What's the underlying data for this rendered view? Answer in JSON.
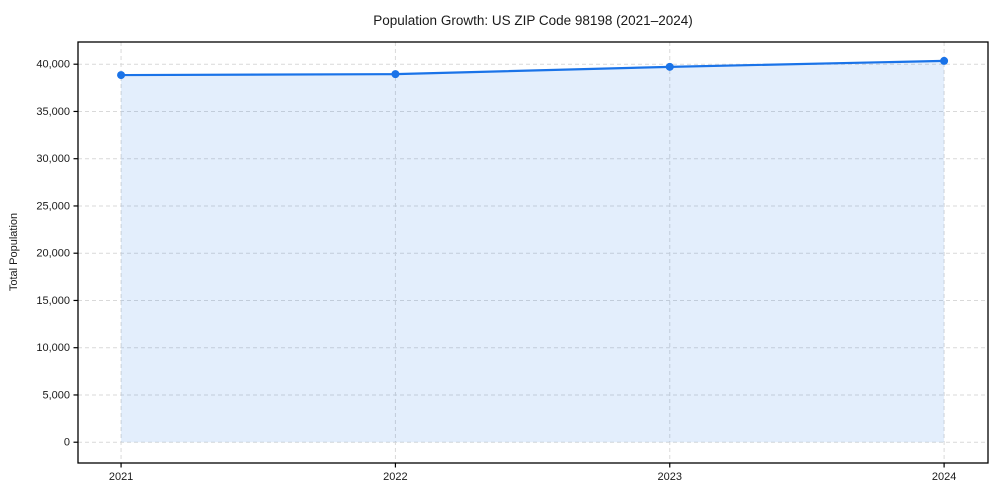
{
  "figure": {
    "background": "#ffffff"
  },
  "chart_data": {
    "type": "line",
    "title": "Population Growth: US ZIP Code 98198 (2021–2024)",
    "xlabel": "",
    "ylabel": "Total Population",
    "x": [
      2021,
      2022,
      2023,
      2024
    ],
    "x_tick_labels": [
      "2021",
      "2022",
      "2023",
      "2024"
    ],
    "series": [
      {
        "name": "Total Population",
        "values": [
          38850,
          38950,
          39720,
          40350
        ]
      }
    ],
    "y_ticks": [
      0,
      5000,
      10000,
      15000,
      20000,
      25000,
      30000,
      35000,
      40000
    ],
    "y_tick_labels": [
      "0",
      "5,000",
      "10,000",
      "15,000",
      "20,000",
      "25,000",
      "30,000",
      "35,000",
      "40,000"
    ],
    "xlim": [
      2020.843,
      2024.16
    ],
    "ylim": [
      -2200,
      42350
    ],
    "grid": true,
    "grid_style": "dashed",
    "legend": false,
    "area_fill": true,
    "area_fill_to": 0,
    "colors": {
      "line": "#1a73e8",
      "marker": "#1a73e8",
      "area": "#1a73e8",
      "area_opacity": "0.12",
      "grid": "#d9d9d9",
      "spine": "#000000",
      "text": "#1a1a1a"
    }
  }
}
